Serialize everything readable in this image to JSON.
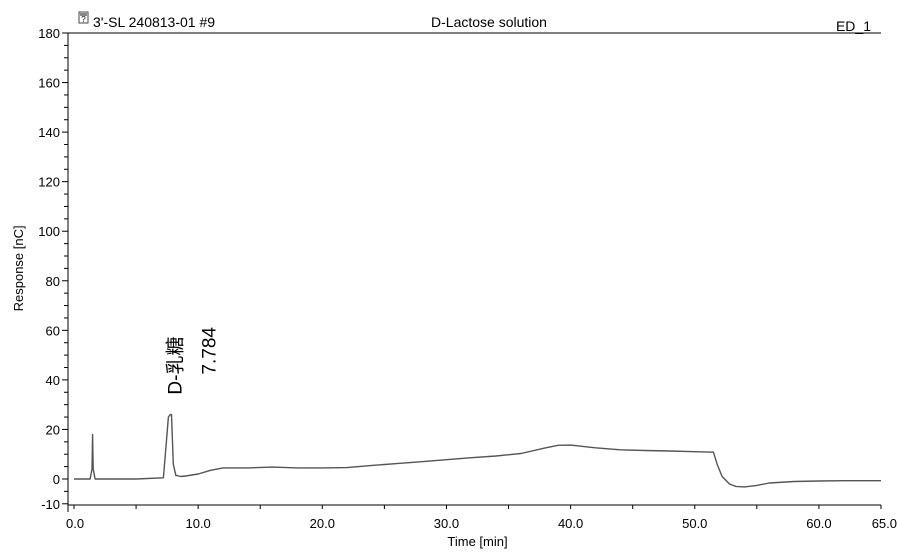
{
  "header": {
    "sample": "3'-SL 240813-01 #9",
    "title": "D-Lactose solution",
    "channel": "ED_1"
  },
  "chart_data": {
    "type": "line",
    "xlabel": "Time [min]",
    "ylabel": "Response [nC]",
    "xlim": [
      0,
      65
    ],
    "ylim": [
      -10,
      180
    ],
    "x_ticks": [
      0,
      10,
      20,
      30,
      40,
      50,
      60,
      65
    ],
    "x_tick_labels": [
      "0.0",
      "10.0",
      "20.0",
      "30.0",
      "40.0",
      "50.0",
      "60.0",
      "65.0"
    ],
    "y_ticks": [
      -10,
      0,
      20,
      40,
      60,
      80,
      100,
      120,
      140,
      160,
      180
    ],
    "y_tick_labels": [
      "-10",
      "0",
      "20",
      "40",
      "60",
      "80",
      "100",
      "120",
      "140",
      "160",
      "180"
    ],
    "grid": false,
    "series": [
      {
        "color": "#555555",
        "x": [
          0,
          1.3,
          1.45,
          1.5,
          1.55,
          1.7,
          2.0,
          5,
          7.2,
          7.6,
          7.75,
          7.85,
          8.0,
          8.2,
          8.6,
          9,
          10,
          11,
          12,
          14,
          16,
          18,
          20,
          22,
          24,
          26,
          28,
          30,
          32,
          34,
          36,
          38,
          39,
          40,
          42,
          44,
          46,
          48,
          50,
          51.5,
          51.8,
          52.2,
          52.8,
          53.3,
          54,
          55,
          56,
          58,
          60,
          62,
          65
        ],
        "y": [
          0,
          0,
          4,
          18,
          4,
          0,
          0,
          0,
          0.5,
          25,
          26,
          26,
          6,
          1.5,
          1,
          1.2,
          2,
          3.5,
          4.5,
          4.5,
          4.8,
          4.5,
          4.5,
          4.6,
          5.5,
          6.2,
          7,
          7.8,
          8.6,
          9.3,
          10.3,
          12.6,
          13.6,
          13.7,
          12.6,
          11.8,
          11.5,
          11.3,
          11,
          10.8,
          6,
          1,
          -2,
          -3,
          -3.2,
          -2.6,
          -1.6,
          -1,
          -0.8,
          -0.7,
          -0.7
        ]
      }
    ],
    "annotations": [
      {
        "label": "D-乳糖",
        "x": 7.784,
        "y": 26
      },
      {
        "label": "7.784",
        "x": 7.784,
        "y": 26
      }
    ]
  }
}
